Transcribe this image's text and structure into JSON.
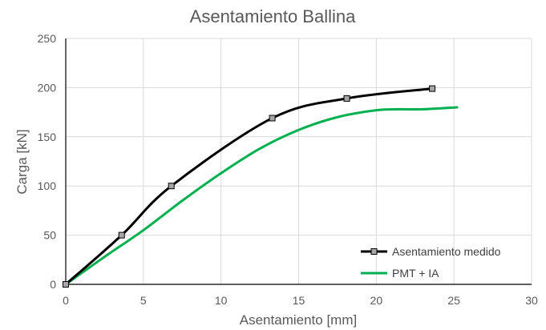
{
  "chart_data": {
    "type": "line",
    "title": "Asentamiento Ballina",
    "xlabel": "Asentamiento [mm]",
    "ylabel": "Carga [kN]",
    "xlim": [
      0,
      30
    ],
    "ylim": [
      0,
      250
    ],
    "xticks": [
      0,
      5,
      10,
      15,
      20,
      25,
      30
    ],
    "yticks": [
      0,
      50,
      100,
      150,
      200,
      250
    ],
    "grid": true,
    "legend_position": "bottom-right",
    "series": [
      {
        "name": "Asentamiento medido",
        "color": "#000000",
        "marker": "square",
        "points": [
          [
            0,
            0
          ],
          [
            3.6,
            50
          ],
          [
            6.8,
            100
          ],
          [
            13.3,
            169
          ],
          [
            18.1,
            189
          ],
          [
            23.6,
            199
          ]
        ]
      },
      {
        "name": "PMT + IA",
        "color": "#00b050",
        "marker": "none",
        "points": [
          [
            0,
            0
          ],
          [
            2.5,
            28
          ],
          [
            5,
            55
          ],
          [
            7.5,
            85
          ],
          [
            10,
            113
          ],
          [
            12.5,
            138
          ],
          [
            15,
            157
          ],
          [
            17.5,
            170
          ],
          [
            20,
            177
          ],
          [
            21.5,
            178
          ],
          [
            23,
            178
          ],
          [
            25.2,
            180
          ]
        ]
      }
    ]
  }
}
